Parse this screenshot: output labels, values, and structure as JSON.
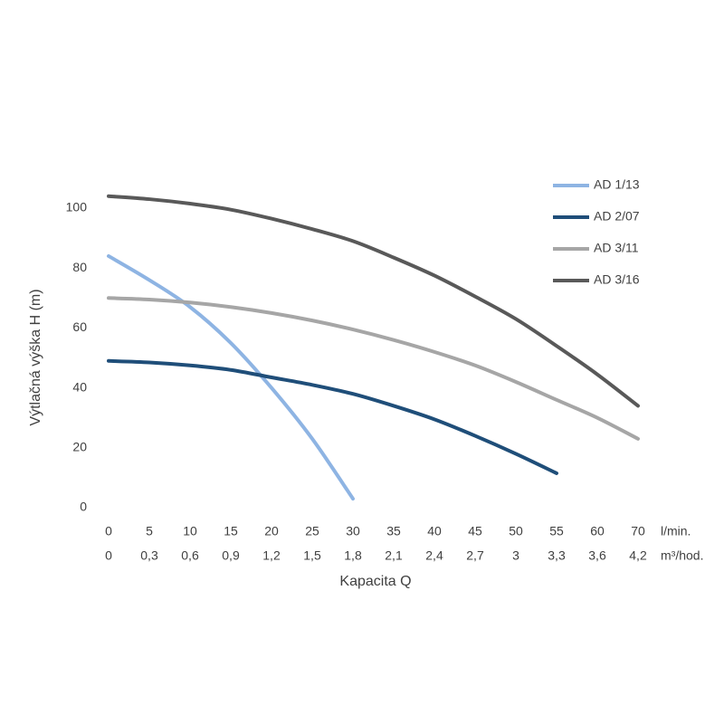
{
  "chart_data": {
    "type": "line",
    "y_label": "Výtlačná výška H (m)",
    "x_label": "Kapacita Q",
    "categories": [
      "0",
      "5",
      "10",
      "15",
      "20",
      "25",
      "30",
      "35",
      "40",
      "45",
      "50",
      "55",
      "60",
      "70"
    ],
    "categories_unit": "l/min.",
    "categories2": [
      "0",
      "0,3",
      "0,6",
      "0,9",
      "1,2",
      "1,5",
      "1,8",
      "2,1",
      "2,4",
      "2,7",
      "3",
      "3,3",
      "3,6",
      "4,2"
    ],
    "categories2_unit": "m³/hod.",
    "ylim": [
      0,
      110
    ],
    "yticks": [
      0,
      20,
      40,
      60,
      80,
      100
    ],
    "grid": false,
    "legend": "top-right",
    "series": [
      {
        "name": "AD 1/13",
        "color": "#8eb4e3",
        "values": [
          84,
          76,
          67,
          55,
          40,
          23,
          3,
          null,
          null,
          null,
          null,
          null,
          null,
          null
        ]
      },
      {
        "name": "AD 2/07",
        "color": "#1f4e79",
        "values": [
          49,
          48.5,
          47.5,
          46,
          43.5,
          41,
          38,
          34,
          29.5,
          24,
          18,
          11.5,
          null,
          null
        ]
      },
      {
        "name": "AD 3/11",
        "color": "#a6a6a6",
        "values": [
          70,
          69.5,
          68.5,
          67,
          65,
          62.5,
          59.5,
          56,
          52,
          47.5,
          42,
          36,
          30,
          23
        ]
      },
      {
        "name": "AD 3/16",
        "color": "#595959",
        "values": [
          104,
          103,
          101.5,
          99.5,
          96.5,
          93,
          89,
          83.5,
          77.5,
          70.5,
          63,
          54,
          44.5,
          34
        ]
      }
    ]
  }
}
